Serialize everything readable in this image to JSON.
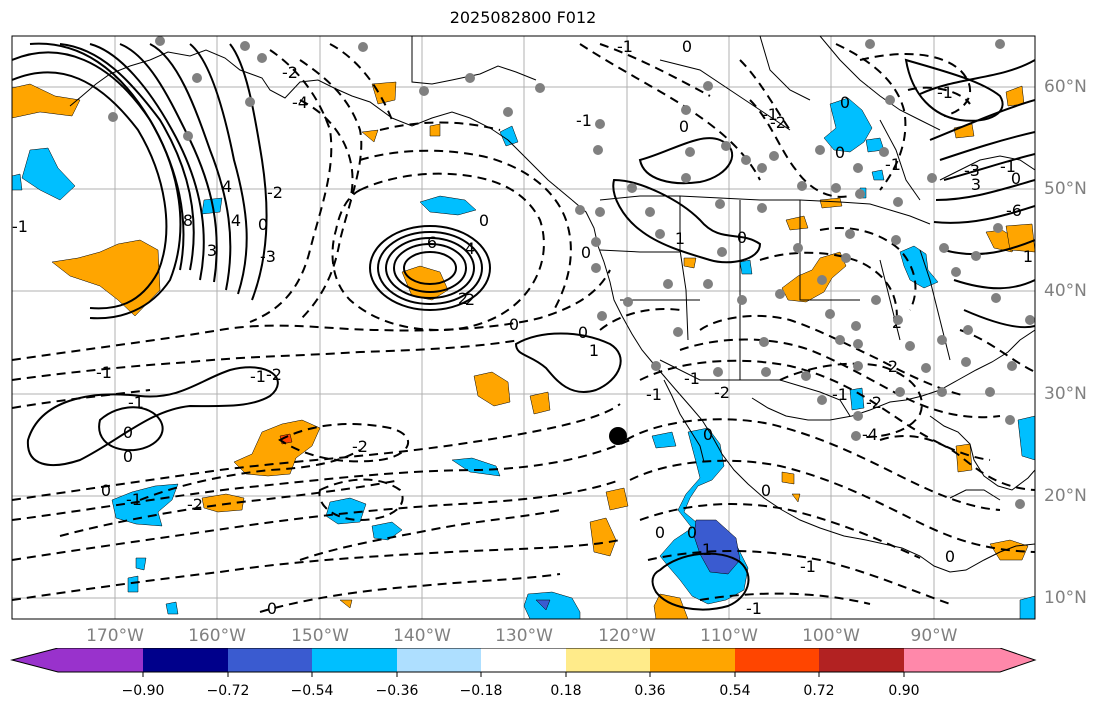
{
  "title": "2025082800 F012",
  "lon_labels": [
    "170°W",
    "160°W",
    "150°W",
    "140°W",
    "130°W",
    "120°W",
    "110°W",
    "100°W",
    "90°W"
  ],
  "lat_labels": [
    "60°N",
    "50°N",
    "40°N",
    "30°N",
    "20°N",
    "10°N"
  ],
  "colorbar": {
    "ticks": [
      "−0.90",
      "−0.72",
      "−0.54",
      "−0.36",
      "−0.18",
      "0.18",
      "0.36",
      "0.54",
      "0.72",
      "0.90"
    ],
    "colors": [
      "#9932cc",
      "#00008b",
      "#3a5bd0",
      "#00bfff",
      "#aedfff",
      "#ffffff",
      "#ffeb8a",
      "#ffa500",
      "#ff4500",
      "#b22222",
      "#ff88aa"
    ]
  },
  "contour_labels": [
    "-1",
    "0",
    "0",
    "0",
    "0",
    "-1",
    "-1",
    "-2",
    "-2",
    "-3",
    "-4",
    "-2",
    "-1",
    "0",
    "0",
    "-1",
    "-1",
    "-2",
    "-2",
    "0",
    "0",
    "-1",
    "-1",
    "2",
    "1",
    "0",
    "-1",
    "-1",
    "-2",
    "0",
    "1",
    "-1",
    "-1",
    "0",
    "-2",
    "-4",
    "2",
    "6",
    "8",
    "3",
    "4",
    "0",
    "0",
    "-6",
    "-3",
    "4",
    "2",
    "0",
    "0",
    "1",
    "0",
    "-1",
    "-2",
    "-1",
    "0",
    "2",
    "0",
    "1",
    "0",
    "-1",
    "-1",
    "0",
    "3",
    "4"
  ],
  "colors": {
    "orange": "#ffa500",
    "blue": "#00bfff",
    "darkblue": "#3a5bd0",
    "red": "#ff4500",
    "station": "#808080",
    "grid": "#b0b0b0"
  }
}
